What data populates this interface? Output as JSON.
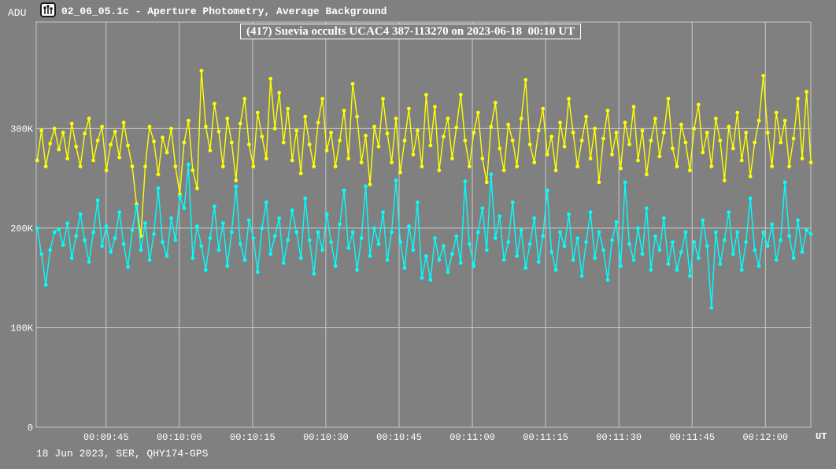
{
  "header": {
    "axis_unit_label": "ADU",
    "icon": "lightcurve-icon",
    "title": "02_06_05.1c - Aperture Photometry, Average Background"
  },
  "footer": {
    "info": "18 Jun 2023, SER, QHY174-GPS"
  },
  "chart_data": {
    "type": "line",
    "title": "(417) Suevia occults UCAC4 387-113270 on 2023-06-18  00:10 UT",
    "xlabel": "UT",
    "ylabel": "ADU",
    "grid": true,
    "legend": "none",
    "x_tick_labels": [
      "00:09:45",
      "00:10:00",
      "00:10:15",
      "00:10:30",
      "00:10:45",
      "00:11:00",
      "00:11:15",
      "00:11:30",
      "00:11:45",
      "00:12:00"
    ],
    "x_tick_seconds": [
      585,
      600,
      615,
      630,
      645,
      660,
      675,
      690,
      705,
      720
    ],
    "x_range_seconds": [
      570.7,
      729.3
    ],
    "y_ticks": [
      {
        "label": "300K",
        "value": 300
      },
      {
        "label": "200K",
        "value": 200
      },
      {
        "label": "100K",
        "value": 100
      },
      {
        "label": "0",
        "value": 0
      }
    ],
    "ylim": [
      0,
      407
    ],
    "value_unit": "kADU",
    "colors": {
      "background": "#808080",
      "grid": "#c9c9c9",
      "text": "#ffffff",
      "series_yellow": "#ffff00",
      "series_cyan": "#00ffff"
    },
    "series": [
      {
        "name": "yellow",
        "color": "#ffff00",
        "start_s": 570.9,
        "step_s": 0.885,
        "values": [
          268,
          298,
          262,
          285,
          300,
          279,
          296,
          270,
          305,
          282,
          262,
          295,
          310,
          268,
          288,
          302,
          258,
          284,
          297,
          271,
          306,
          283,
          262,
          224,
          192,
          262,
          302,
          287,
          254,
          291,
          276,
          300,
          262,
          234,
          286,
          308,
          258,
          240,
          358,
          302,
          278,
          325,
          297,
          262,
          310,
          286,
          248,
          305,
          330,
          284,
          262,
          316,
          292,
          270,
          350,
          300,
          336,
          286,
          320,
          268,
          298,
          255,
          312,
          284,
          262,
          306,
          330,
          278,
          296,
          262,
          288,
          318,
          270,
          345,
          312,
          266,
          293,
          244,
          302,
          282,
          330,
          295,
          266,
          310,
          256,
          288,
          320,
          274,
          298,
          262,
          334,
          283,
          322,
          258,
          292,
          310,
          270,
          301,
          334,
          288,
          262,
          296,
          316,
          270,
          246,
          302,
          326,
          280,
          258,
          304,
          288,
          262,
          310,
          349,
          284,
          266,
          298,
          320,
          274,
          292,
          258,
          306,
          282,
          330,
          296,
          262,
          288,
          312,
          270,
          300,
          246,
          290,
          318,
          274,
          296,
          260,
          306,
          284,
          322,
          268,
          298,
          254,
          288,
          310,
          272,
          296,
          330,
          280,
          262,
          304,
          286,
          258,
          300,
          324,
          276,
          296,
          262,
          310,
          288,
          248,
          302,
          280,
          316,
          268,
          296,
          252,
          286,
          308,
          353,
          296,
          262,
          316,
          286,
          308,
          262,
          290,
          330,
          270,
          337,
          266
        ]
      },
      {
        "name": "cyan",
        "color": "#00ffff",
        "start_s": 570.9,
        "step_s": 0.885,
        "values": [
          200,
          174,
          143,
          178,
          196,
          199,
          183,
          205,
          170,
          192,
          214,
          188,
          166,
          196,
          228,
          182,
          202,
          176,
          190,
          216,
          184,
          161,
          198,
          222,
          178,
          205,
          168,
          194,
          240,
          186,
          172,
          210,
          188,
          232,
          220,
          264,
          170,
          202,
          182,
          158,
          190,
          222,
          178,
          205,
          162,
          196,
          242,
          184,
          168,
          208,
          190,
          156,
          200,
          226,
          174,
          192,
          210,
          165,
          188,
          218,
          196,
          170,
          230,
          188,
          154,
          196,
          178,
          214,
          186,
          162,
          204,
          238,
          180,
          196,
          158,
          190,
          242,
          172,
          200,
          184,
          216,
          168,
          196,
          248,
          186,
          160,
          202,
          178,
          226,
          150,
          172,
          148,
          190,
          168,
          182,
          156,
          174,
          192,
          165,
          247,
          184,
          162,
          196,
          220,
          178,
          254,
          190,
          212,
          168,
          186,
          226,
          172,
          198,
          160,
          184,
          210,
          166,
          192,
          238,
          176,
          158,
          196,
          182,
          214,
          168,
          190,
          152,
          186,
          216,
          170,
          196,
          178,
          148,
          188,
          206,
          162,
          246,
          184,
          168,
          200,
          174,
          220,
          158,
          192,
          178,
          210,
          164,
          186,
          158,
          176,
          196,
          152,
          186,
          170,
          208,
          182,
          120,
          196,
          164,
          188,
          216,
          174,
          196,
          158,
          186,
          230,
          178,
          162,
          196,
          182,
          204,
          168,
          188,
          246,
          192,
          170,
          208,
          176,
          198,
          194
        ]
      }
    ]
  }
}
